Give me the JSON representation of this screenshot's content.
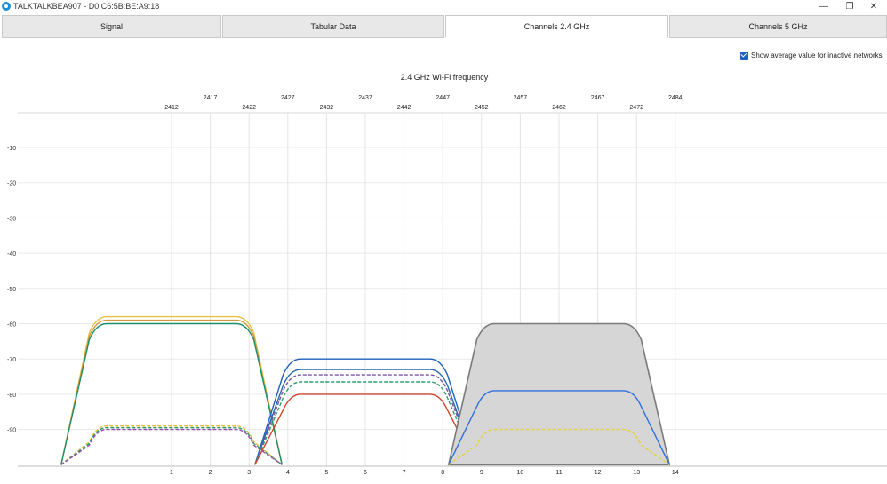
{
  "window": {
    "title": "TALKTALKBEA907 - D0:C6:5B:BE:A9:18",
    "controls": [
      "—",
      "❐",
      "✕"
    ]
  },
  "tabs": [
    {
      "label": "Signal",
      "active": false
    },
    {
      "label": "Tabular Data",
      "active": false
    },
    {
      "label": "Channels 2.4 GHz",
      "active": true
    },
    {
      "label": "Channels 5 GHz",
      "active": false
    }
  ],
  "options": {
    "show_average_label": "Show average value for inactive networks",
    "show_average_checked": true
  },
  "chart_data": {
    "type": "area",
    "title": "2.4 GHz Wi-Fi frequency",
    "x_unit": "channel",
    "xlim": [
      -3,
      17.5
    ],
    "ylim": [
      -100,
      0
    ],
    "y_ticks": [
      -10,
      -20,
      -30,
      -40,
      -50,
      -60,
      -70,
      -80,
      -90
    ],
    "channel_ticks": [
      {
        "channel": 1,
        "freq": "2412"
      },
      {
        "channel": 2,
        "freq": "2417"
      },
      {
        "channel": 3,
        "freq": "2422"
      },
      {
        "channel": 4,
        "freq": "2427"
      },
      {
        "channel": 5,
        "freq": "2432"
      },
      {
        "channel": 6,
        "freq": "2437"
      },
      {
        "channel": 7,
        "freq": "2442"
      },
      {
        "channel": 8,
        "freq": "2447"
      },
      {
        "channel": 9,
        "freq": "2452"
      },
      {
        "channel": 10,
        "freq": "2457"
      },
      {
        "channel": 11,
        "freq": "2462"
      },
      {
        "channel": 12,
        "freq": "2467"
      },
      {
        "channel": 13,
        "freq": "2472"
      },
      {
        "channel": 14,
        "freq": "2484"
      }
    ],
    "grid": true,
    "series": [
      {
        "channel": 1,
        "signal": -58,
        "color": "#e8c04a",
        "dashed": false,
        "filled": false
      },
      {
        "channel": 1,
        "signal": -59,
        "color": "#d09a3c",
        "dashed": false,
        "filled": false
      },
      {
        "channel": 1,
        "signal": -60,
        "color": "#1f8f6a",
        "dashed": false,
        "filled": false
      },
      {
        "channel": 1,
        "signal": -89,
        "color": "#e8c04a",
        "dashed": true,
        "filled": false
      },
      {
        "channel": 1,
        "signal": -89.5,
        "color": "#2e9e6a",
        "dashed": true,
        "filled": false
      },
      {
        "channel": 1,
        "signal": -90,
        "color": "#9b4fb8",
        "dashed": true,
        "filled": false
      },
      {
        "channel": 6,
        "signal": -70,
        "color": "#1f5fbf",
        "dashed": false,
        "filled": false
      },
      {
        "channel": 6,
        "signal": -73,
        "color": "#2a6aa8",
        "dashed": false,
        "filled": false
      },
      {
        "channel": 6,
        "signal": -74.5,
        "color": "#7b52a8",
        "dashed": true,
        "filled": false
      },
      {
        "channel": 6,
        "signal": -76.5,
        "color": "#2e9e6a",
        "dashed": true,
        "filled": false
      },
      {
        "channel": 6,
        "signal": -80,
        "color": "#d0452a",
        "dashed": false,
        "filled": false
      },
      {
        "channel": 11,
        "signal": -60,
        "color": "#7a7a7a",
        "dashed": false,
        "filled": true
      },
      {
        "channel": 11,
        "signal": -79,
        "color": "#2f6fdf",
        "dashed": false,
        "filled": false
      },
      {
        "channel": 11,
        "signal": -90,
        "color": "#e8d040",
        "dashed": true,
        "filled": false
      }
    ]
  }
}
